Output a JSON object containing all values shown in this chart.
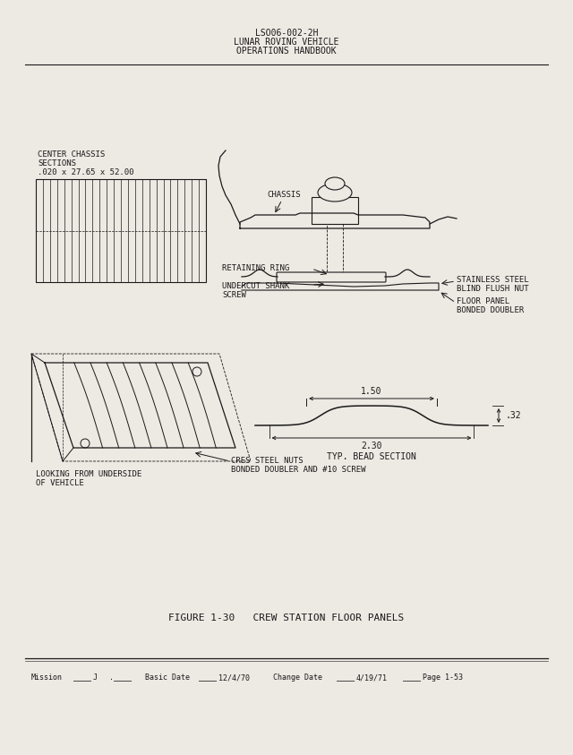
{
  "bg_color": "#ede9e3",
  "text_color": "#1a1a1a",
  "line_color": "#1a1a1a",
  "header_line1": "LSO06-002-2H",
  "header_line2": "LUNAR ROVING VEHICLE",
  "header_line3": "OPERATIONS HANDBOOK",
  "figure_caption": "FIGURE 1-30   CREW STATION FLOOR PANELS",
  "label_center_chassis_1": "CENTER CHASSIS",
  "label_center_chassis_2": "SECTIONS",
  "label_center_chassis_3": ".020 x 27.65 x 52.00",
  "label_chassis": "CHASSIS",
  "label_stainless": "STAINLESS STEEL",
  "label_blind_flush": "BLIND FLUSH NUT",
  "label_retaining": "RETAINING RING",
  "label_floor_panel": "FLOOR PANEL",
  "label_bonded_doubler": "BONDED DOUBLER",
  "label_undercut": "UNDERCUT SHANK",
  "label_screw": "SCREW",
  "label_looking": "LOOKING FROM UNDERSIDE",
  "label_of_vehicle": "OF VEHICLE",
  "label_cres": "CRES STEEL NUTS",
  "label_bonded2": "BONDED DOUBLER AND #10 SCREW",
  "dim_150": "1.50",
  "dim_32": ".32",
  "dim_230": "2.30",
  "label_bead": "TYP. BEAD SECTION"
}
